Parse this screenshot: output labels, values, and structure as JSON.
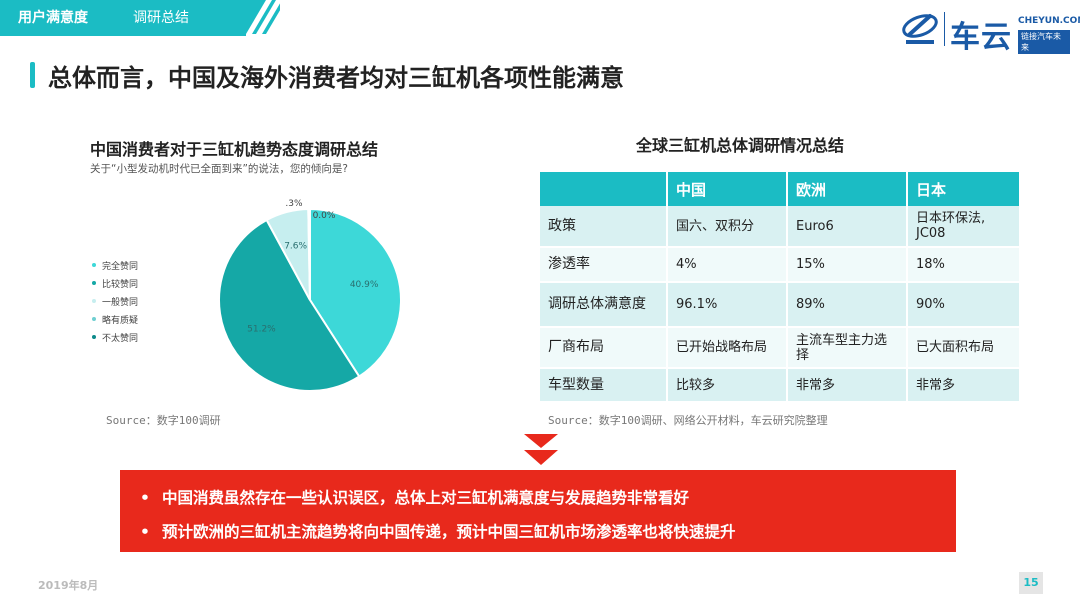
{
  "header": {
    "section": "用户满意度",
    "subsection": "调研总结"
  },
  "logo": {
    "name": "车云",
    "domain": "CHEYUN.COM",
    "slogan": "链接汽车未来",
    "emblem_icon": "cheyun-emblem-icon"
  },
  "page_title": "总体而言，中国及海外消费者均对三缸机各项性能满意",
  "chart_data": {
    "type": "pie",
    "title": "中国消费者对于三缸机趋势态度调研总结",
    "subtitle": "关于“小型发动机时代已全面到来”的说法，您的倾向是?",
    "labels": [
      "完全赞同",
      "比较赞同",
      "一般赞同",
      "略有质疑",
      "不太赞同"
    ],
    "values": [
      40.9,
      51.2,
      7.6,
      0.3,
      0.0
    ],
    "value_labels": [
      "40.9%",
      "51.2%",
      "7.6%",
      ".3%",
      "0.0%"
    ],
    "colors": [
      "#3dd8d8",
      "#15a8a6",
      "#c6eeef",
      "#6fcfd1",
      "#0c8a8a"
    ],
    "legend_position": "left",
    "source": "Source：数字100调研"
  },
  "table": {
    "title": "全球三缸机总体调研情况总结",
    "columns": [
      "",
      "中国",
      "欧洲",
      "日本"
    ],
    "rows": [
      [
        "政策",
        "国六、双积分",
        "Euro6",
        "日本环保法,\nJC08"
      ],
      [
        "渗透率",
        "4%",
        "15%",
        "18%"
      ],
      [
        "调研总体满意度",
        "96.1%",
        "89%",
        "90%"
      ],
      [
        "厂商布局",
        "已开始战略布局",
        "主流车型主力选择",
        "已大面积布局"
      ],
      [
        "车型数量",
        "比较多",
        "非常多",
        "非常多"
      ]
    ],
    "source": "Source：数字100调研、网络公开材料，车云研究院整理"
  },
  "arrows_icon": "double-chevron-down-icon",
  "callout": {
    "bullet": "•",
    "points": [
      "中国消费虽然存在一些认识误区，总体上对三缸机满意度与发展趋势非常看好",
      "预计欧洲的三缸机主流趋势将向中国传递，预计中国三缸机市场渗透率也将快速提升"
    ]
  },
  "footer": {
    "date": "2019年8月",
    "page_number": "15"
  },
  "colors": {
    "accent": "#1bbcc4",
    "callout": "#e8291c",
    "brand": "#1a5aa6"
  }
}
